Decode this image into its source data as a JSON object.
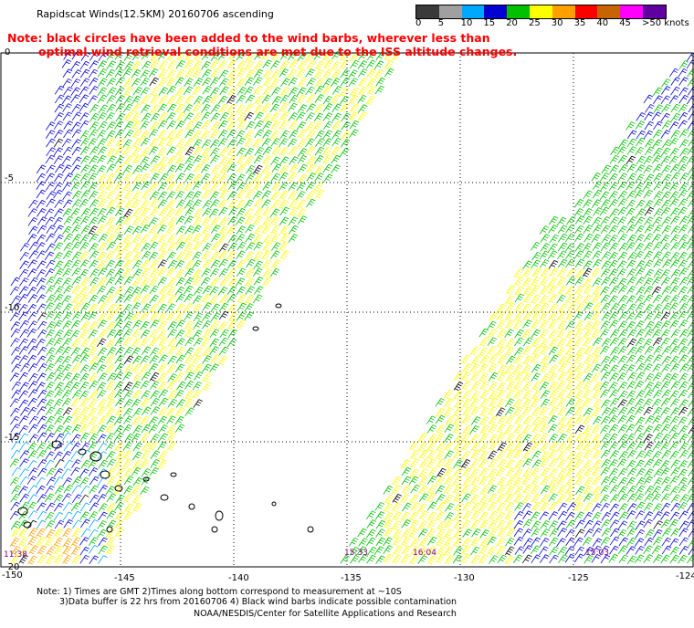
{
  "header": {
    "title": "Rapidscat Winds(12.5KM) 20160706 ascending",
    "note_line1": "Note: black circles have been added to the wind barbs, wherever less than",
    "note_line2": "optimal wind retrieval conditions are met due to the ISS altitude changes."
  },
  "legend": {
    "labels": [
      "0",
      "5",
      "10",
      "15",
      "20",
      "25",
      "30",
      "35",
      "40",
      "45",
      ">50 knots"
    ],
    "colors": [
      "#3a3a3a",
      "#a0a0a0",
      "#00a8ff",
      "#0000d0",
      "#00c000",
      "#ffff00",
      "#ffa000",
      "#ff0000",
      "#c86400",
      "#ff00ff",
      "#6000a0"
    ]
  },
  "axes": {
    "lat_labels": [
      "0",
      "-5",
      "-10",
      "-15",
      "-20"
    ],
    "lon_labels": [
      "-150",
      "-145",
      "-140",
      "-135",
      "-130",
      "-125",
      "-124"
    ]
  },
  "times": {
    "left": "11:38",
    "mid1": "15:33",
    "mid2": "16:04",
    "right": "15:03"
  },
  "footer": {
    "line1": "Note: 1) Times are GMT 2)Times along bottom correspond to measurement at ~10S",
    "line2": "3)Data buffer is 22 hrs from 20160706 4) Black wind barbs indicate possible contamination",
    "line3": "NOAA/NESDIS/Center for Satellite Applications and Research"
  },
  "colors": {
    "note": "#ff0000",
    "grid": "#000000",
    "time_label": "#800080"
  }
}
